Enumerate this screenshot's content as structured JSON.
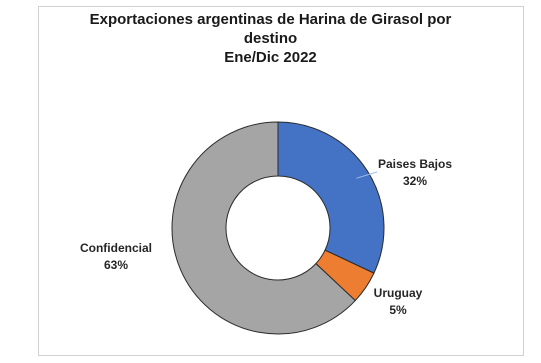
{
  "chart_data": {
    "type": "pie",
    "donut": true,
    "title_lines": [
      "Exportaciones argentinas de Harina de Girasol por",
      "destino",
      "Ene/Dic 2022"
    ],
    "slices": [
      {
        "label": "Paises Bajos",
        "value": 32,
        "pct_label": "32%",
        "color": "#4472C4"
      },
      {
        "label": "Uruguay",
        "value": 5,
        "pct_label": "5%",
        "color": "#ED7D31"
      },
      {
        "label": "Confidencial",
        "value": 63,
        "pct_label": "63%",
        "color": "#A5A5A5"
      }
    ],
    "legend": "none",
    "data_labels": "outside"
  }
}
